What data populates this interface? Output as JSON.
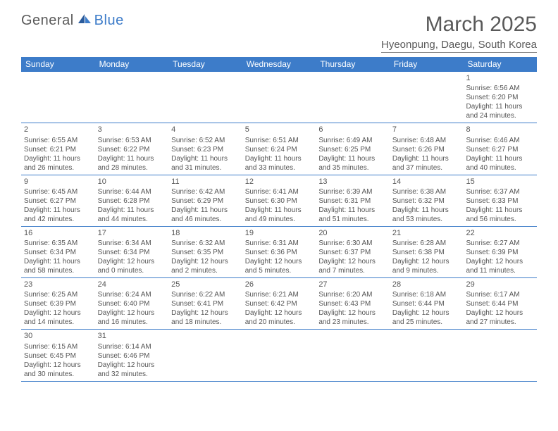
{
  "logo": {
    "part1": "General",
    "part2": "Blue"
  },
  "title": "March 2025",
  "subtitle": "Hyeonpung, Daegu, South Korea",
  "colors": {
    "headerBg": "#3d7cc9",
    "headerText": "#ffffff",
    "bodyText": "#555555",
    "titleText": "#595959",
    "borderColor": "#3d7cc9"
  },
  "weekdays": [
    "Sunday",
    "Monday",
    "Tuesday",
    "Wednesday",
    "Thursday",
    "Friday",
    "Saturday"
  ],
  "weeks": [
    [
      null,
      null,
      null,
      null,
      null,
      null,
      {
        "n": "1",
        "sr": "Sunrise: 6:56 AM",
        "ss": "Sunset: 6:20 PM",
        "dl": "Daylight: 11 hours and 24 minutes."
      }
    ],
    [
      {
        "n": "2",
        "sr": "Sunrise: 6:55 AM",
        "ss": "Sunset: 6:21 PM",
        "dl": "Daylight: 11 hours and 26 minutes."
      },
      {
        "n": "3",
        "sr": "Sunrise: 6:53 AM",
        "ss": "Sunset: 6:22 PM",
        "dl": "Daylight: 11 hours and 28 minutes."
      },
      {
        "n": "4",
        "sr": "Sunrise: 6:52 AM",
        "ss": "Sunset: 6:23 PM",
        "dl": "Daylight: 11 hours and 31 minutes."
      },
      {
        "n": "5",
        "sr": "Sunrise: 6:51 AM",
        "ss": "Sunset: 6:24 PM",
        "dl": "Daylight: 11 hours and 33 minutes."
      },
      {
        "n": "6",
        "sr": "Sunrise: 6:49 AM",
        "ss": "Sunset: 6:25 PM",
        "dl": "Daylight: 11 hours and 35 minutes."
      },
      {
        "n": "7",
        "sr": "Sunrise: 6:48 AM",
        "ss": "Sunset: 6:26 PM",
        "dl": "Daylight: 11 hours and 37 minutes."
      },
      {
        "n": "8",
        "sr": "Sunrise: 6:46 AM",
        "ss": "Sunset: 6:27 PM",
        "dl": "Daylight: 11 hours and 40 minutes."
      }
    ],
    [
      {
        "n": "9",
        "sr": "Sunrise: 6:45 AM",
        "ss": "Sunset: 6:27 PM",
        "dl": "Daylight: 11 hours and 42 minutes."
      },
      {
        "n": "10",
        "sr": "Sunrise: 6:44 AM",
        "ss": "Sunset: 6:28 PM",
        "dl": "Daylight: 11 hours and 44 minutes."
      },
      {
        "n": "11",
        "sr": "Sunrise: 6:42 AM",
        "ss": "Sunset: 6:29 PM",
        "dl": "Daylight: 11 hours and 46 minutes."
      },
      {
        "n": "12",
        "sr": "Sunrise: 6:41 AM",
        "ss": "Sunset: 6:30 PM",
        "dl": "Daylight: 11 hours and 49 minutes."
      },
      {
        "n": "13",
        "sr": "Sunrise: 6:39 AM",
        "ss": "Sunset: 6:31 PM",
        "dl": "Daylight: 11 hours and 51 minutes."
      },
      {
        "n": "14",
        "sr": "Sunrise: 6:38 AM",
        "ss": "Sunset: 6:32 PM",
        "dl": "Daylight: 11 hours and 53 minutes."
      },
      {
        "n": "15",
        "sr": "Sunrise: 6:37 AM",
        "ss": "Sunset: 6:33 PM",
        "dl": "Daylight: 11 hours and 56 minutes."
      }
    ],
    [
      {
        "n": "16",
        "sr": "Sunrise: 6:35 AM",
        "ss": "Sunset: 6:34 PM",
        "dl": "Daylight: 11 hours and 58 minutes."
      },
      {
        "n": "17",
        "sr": "Sunrise: 6:34 AM",
        "ss": "Sunset: 6:34 PM",
        "dl": "Daylight: 12 hours and 0 minutes."
      },
      {
        "n": "18",
        "sr": "Sunrise: 6:32 AM",
        "ss": "Sunset: 6:35 PM",
        "dl": "Daylight: 12 hours and 2 minutes."
      },
      {
        "n": "19",
        "sr": "Sunrise: 6:31 AM",
        "ss": "Sunset: 6:36 PM",
        "dl": "Daylight: 12 hours and 5 minutes."
      },
      {
        "n": "20",
        "sr": "Sunrise: 6:30 AM",
        "ss": "Sunset: 6:37 PM",
        "dl": "Daylight: 12 hours and 7 minutes."
      },
      {
        "n": "21",
        "sr": "Sunrise: 6:28 AM",
        "ss": "Sunset: 6:38 PM",
        "dl": "Daylight: 12 hours and 9 minutes."
      },
      {
        "n": "22",
        "sr": "Sunrise: 6:27 AM",
        "ss": "Sunset: 6:39 PM",
        "dl": "Daylight: 12 hours and 11 minutes."
      }
    ],
    [
      {
        "n": "23",
        "sr": "Sunrise: 6:25 AM",
        "ss": "Sunset: 6:39 PM",
        "dl": "Daylight: 12 hours and 14 minutes."
      },
      {
        "n": "24",
        "sr": "Sunrise: 6:24 AM",
        "ss": "Sunset: 6:40 PM",
        "dl": "Daylight: 12 hours and 16 minutes."
      },
      {
        "n": "25",
        "sr": "Sunrise: 6:22 AM",
        "ss": "Sunset: 6:41 PM",
        "dl": "Daylight: 12 hours and 18 minutes."
      },
      {
        "n": "26",
        "sr": "Sunrise: 6:21 AM",
        "ss": "Sunset: 6:42 PM",
        "dl": "Daylight: 12 hours and 20 minutes."
      },
      {
        "n": "27",
        "sr": "Sunrise: 6:20 AM",
        "ss": "Sunset: 6:43 PM",
        "dl": "Daylight: 12 hours and 23 minutes."
      },
      {
        "n": "28",
        "sr": "Sunrise: 6:18 AM",
        "ss": "Sunset: 6:44 PM",
        "dl": "Daylight: 12 hours and 25 minutes."
      },
      {
        "n": "29",
        "sr": "Sunrise: 6:17 AM",
        "ss": "Sunset: 6:44 PM",
        "dl": "Daylight: 12 hours and 27 minutes."
      }
    ],
    [
      {
        "n": "30",
        "sr": "Sunrise: 6:15 AM",
        "ss": "Sunset: 6:45 PM",
        "dl": "Daylight: 12 hours and 30 minutes."
      },
      {
        "n": "31",
        "sr": "Sunrise: 6:14 AM",
        "ss": "Sunset: 6:46 PM",
        "dl": "Daylight: 12 hours and 32 minutes."
      },
      null,
      null,
      null,
      null,
      null
    ]
  ]
}
